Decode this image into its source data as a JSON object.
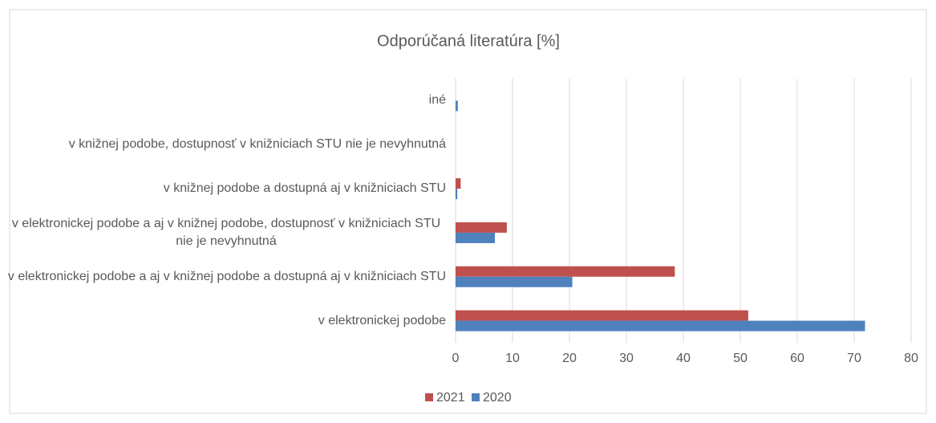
{
  "chart_data": {
    "type": "hbar",
    "title": "Odporúčaná literatúra [%]",
    "categories": [
      "iné",
      "v knižnej podobe, dostupnosť v knižniciach STU nie je nevyhnutná",
      "v knižnej podobe a dostupná aj v knižniciach STU",
      "v elektronickej podobe a aj v knižnej podobe, dostupnosť v knižniciach STU nie je nevyhnutná",
      "v elektronickej podobe a aj v knižnej podobe a dostupná aj v knižniciach STU",
      "v elektronickej podobe"
    ],
    "series": [
      {
        "name": "2021",
        "color": "#c0504d",
        "values": [
          0,
          0,
          0.9,
          9,
          38.5,
          51.4
        ]
      },
      {
        "name": "2020",
        "color": "#4f81bd",
        "values": [
          0.4,
          0,
          0.3,
          6.9,
          20.5,
          71.9
        ]
      }
    ],
    "xlim": [
      0,
      80
    ],
    "xticks": [
      0,
      10,
      20,
      30,
      40,
      50,
      60,
      70,
      80
    ],
    "grid": true,
    "legend": "bottom"
  }
}
